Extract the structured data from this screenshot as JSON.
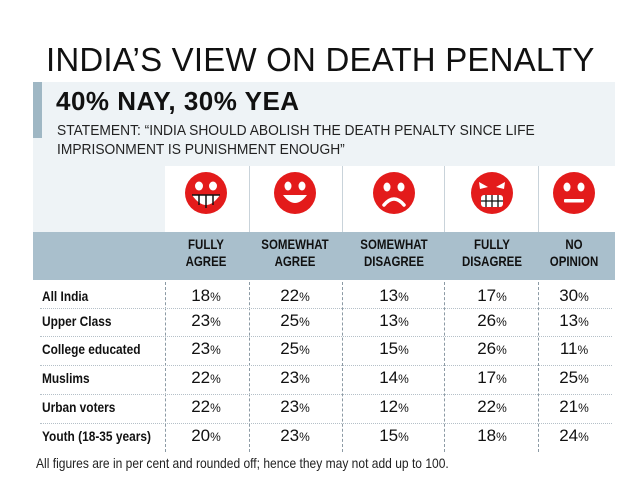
{
  "title": "INDIA’S VIEW ON DEATH PENALTY",
  "headline": "40% NAY, 30% YEA",
  "statement": "STATEMENT: “INDIA SHOULD ABOLISH THE DEATH PENALTY SINCE LIFE IMPRISONMENT IS PUNISHMENT ENOUGH”",
  "footnote": "All figures are in per cent and rounded off; hence they may not add up to 100.",
  "colors": {
    "face": "#e31b1b",
    "band": "#a9bfcc",
    "panel": "#eef3f6"
  },
  "chart_data": {
    "type": "table",
    "columns": [
      {
        "label": "FULLY AGREE",
        "line1": "FULLY",
        "line2": "AGREE",
        "icon": "very-happy-face-icon"
      },
      {
        "label": "SOMEWHAT AGREE",
        "line1": "SOMEWHAT",
        "line2": "AGREE",
        "icon": "happy-face-icon"
      },
      {
        "label": "SOMEWHAT DISAGREE",
        "line1": "SOMEWHAT",
        "line2": "DISAGREE",
        "icon": "sad-face-icon"
      },
      {
        "label": "FULLY DISAGREE",
        "line1": "FULLY",
        "line2": "DISAGREE",
        "icon": "angry-face-icon"
      },
      {
        "label": "NO OPINION",
        "line1": "NO",
        "line2": "OPINION",
        "icon": "neutral-face-icon"
      }
    ],
    "unit": "%",
    "rows": [
      {
        "label": "All India",
        "values": [
          18,
          22,
          13,
          17,
          30
        ]
      },
      {
        "label": "Upper Class",
        "values": [
          23,
          25,
          13,
          26,
          13
        ]
      },
      {
        "label": "College educated",
        "values": [
          23,
          25,
          15,
          26,
          11
        ]
      },
      {
        "label": "Muslims",
        "values": [
          22,
          23,
          14,
          17,
          25
        ]
      },
      {
        "label": "Urban voters",
        "values": [
          22,
          23,
          12,
          22,
          21
        ]
      },
      {
        "label": "Youth (18-35 years)",
        "values": [
          20,
          23,
          15,
          18,
          24
        ]
      }
    ]
  }
}
